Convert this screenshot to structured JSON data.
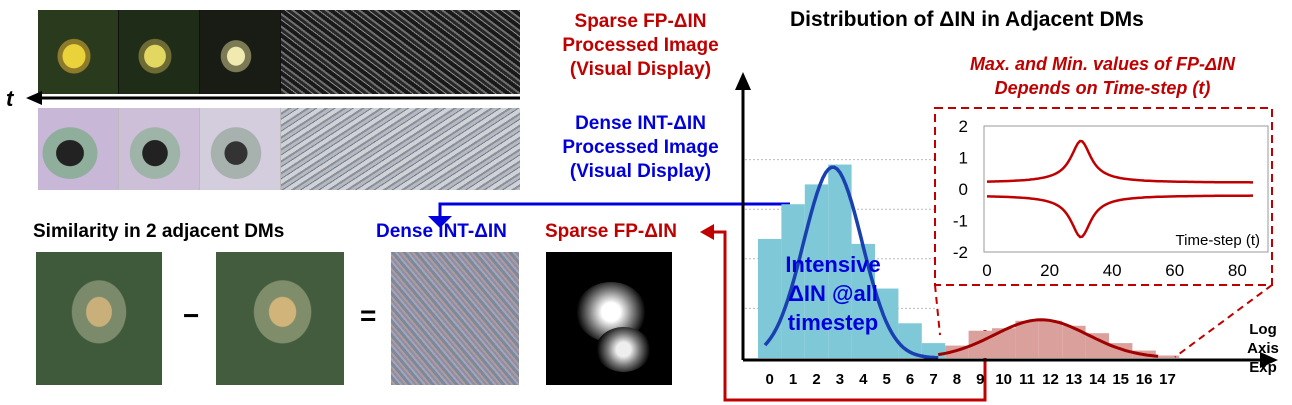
{
  "left": {
    "time_axis_label": "t",
    "sparse_caption": [
      "Sparse FP-ΔIN",
      "Processed Image",
      "(Visual Display)"
    ],
    "dense_caption": [
      "Dense INT-ΔIN",
      "Processed Image",
      "(Visual Display)"
    ],
    "similarity_title": "Similarity in 2 adjacent DMs",
    "minus_sign": "−",
    "equals_sign": "=",
    "dense_label": "Dense INT-ΔIN",
    "sparse_label": "Sparse FP-ΔIN"
  },
  "right": {
    "title": "Distribution of ΔIN in Adjacent DMs",
    "inset_caption": [
      "Max. and Min. values of FP-ΔIN",
      "Depends on Time-step (t)"
    ],
    "intensive_label": [
      "Intensive",
      "ΔIN @all",
      "timestep"
    ],
    "axis_label": [
      "Log",
      "Axis",
      "Exp"
    ]
  },
  "colors": {
    "red": "#c00000",
    "blue": "#0000dd",
    "hist_blue": "#7ec8d8",
    "hist_red": "#d9a09c",
    "curve_blue": "#1a3fb0"
  },
  "chart_data": [
    {
      "type": "bar",
      "categories": [
        "0",
        "1",
        "2",
        "3",
        "4",
        "5",
        "6",
        "7",
        "8",
        "9",
        "10",
        "11",
        "12",
        "13",
        "14",
        "15",
        "16",
        "17"
      ],
      "series": [
        {
          "values": [
            2.4,
            3.1,
            3.5,
            3.9,
            2.3,
            1.4,
            0.7,
            0.3,
            0.25,
            0.55,
            0.6,
            0.75,
            0.75,
            0.65,
            0.5,
            0.3,
            0.15,
            0.05
          ]
        }
      ],
      "ylim": [
        0,
        5
      ]
    },
    {
      "type": "line",
      "xlabel": "Time-step (t)",
      "xlim": [
        0,
        85
      ],
      "ylim": [
        -2,
        2
      ],
      "xticks": [
        0,
        20,
        40,
        60,
        80
      ],
      "yticks": [
        2,
        1,
        0,
        -1,
        -2
      ],
      "series": [
        {
          "x": [
            0,
            10,
            20,
            25,
            28,
            30,
            32,
            35,
            40,
            50,
            60,
            85
          ],
          "y": [
            0.2,
            0.25,
            0.4,
            0.7,
            1.1,
            1.45,
            1.1,
            0.7,
            0.4,
            0.25,
            0.2,
            0.2
          ]
        },
        {
          "x": [
            0,
            10,
            20,
            25,
            28,
            30,
            32,
            35,
            40,
            50,
            60,
            85
          ],
          "y": [
            -0.2,
            -0.25,
            -0.4,
            -0.7,
            -1.1,
            -1.45,
            -1.1,
            -0.7,
            -0.4,
            -0.25,
            -0.2,
            -0.2
          ]
        }
      ]
    }
  ]
}
